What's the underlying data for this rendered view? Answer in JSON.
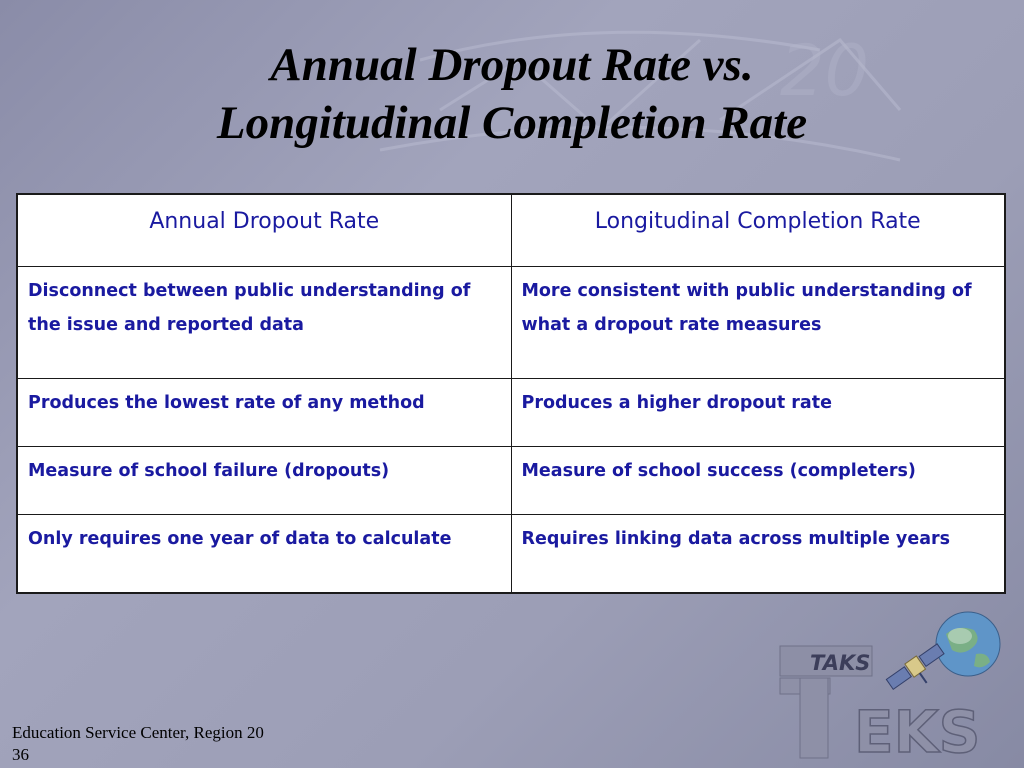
{
  "slide": {
    "title_line1": "Annual Dropout Rate vs.",
    "title_line2": "Longitudinal Completion Rate"
  },
  "table": {
    "headers": [
      "Annual Dropout Rate",
      "Longitudinal Completion Rate"
    ],
    "rows": [
      [
        "Disconnect between public understanding of the issue and reported data",
        "More consistent with public understanding of what a dropout rate measures"
      ],
      [
        "Produces the lowest rate of any method",
        "Produces a higher dropout rate"
      ],
      [
        "Measure of school failure (dropouts)",
        "Measure of school success (completers)"
      ],
      [
        "Only requires one year of data to calculate",
        "Requires linking data across multiple years"
      ]
    ]
  },
  "footer": {
    "organization": "Education Service Center, Region 20",
    "slide_number": "36"
  },
  "logo": {
    "small_text": "TAKS",
    "big_letter": "T",
    "rest_text": "EKS",
    "icons": [
      "globe-icon",
      "satellite-icon"
    ]
  }
}
